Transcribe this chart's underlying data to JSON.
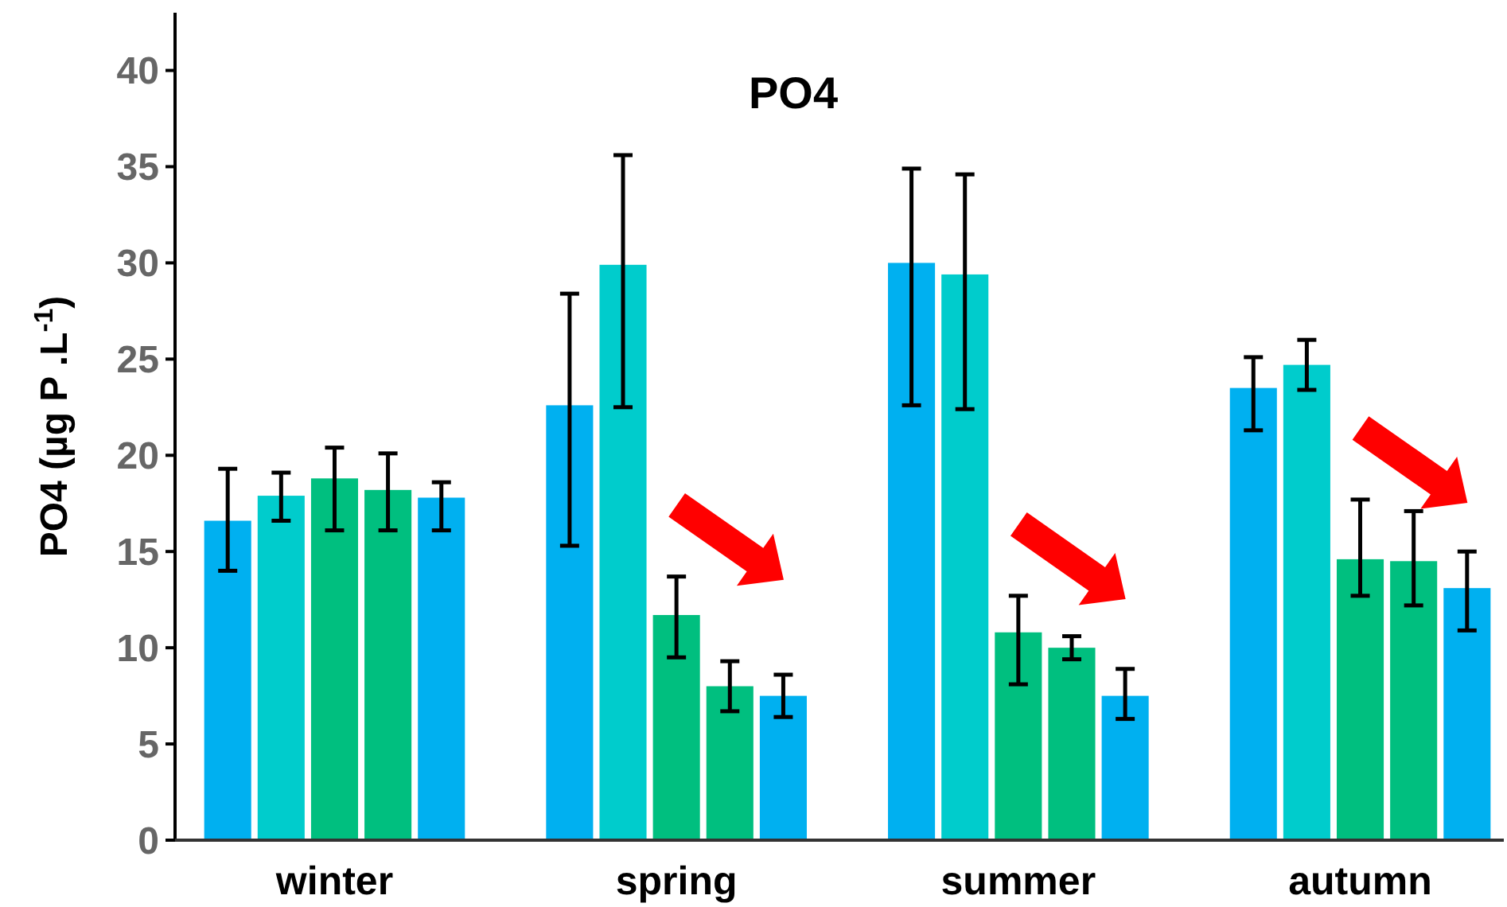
{
  "chart_data": {
    "type": "bar",
    "title": "PO4",
    "ylabel": "PO4 (µg P .L$^{-1}$)",
    "categories": [
      "winter",
      "spring",
      "summer",
      "autumn"
    ],
    "series": [
      {
        "color": "#00b0f0",
        "values": [
          16.6,
          22.6,
          30.0,
          23.5
        ],
        "errors": [
          [
            14.0,
            19.3
          ],
          [
            15.3,
            28.4
          ],
          [
            22.6,
            34.9
          ],
          [
            21.3,
            25.1
          ]
        ]
      },
      {
        "color": "#00cccc",
        "values": [
          17.9,
          29.9,
          29.4,
          24.7
        ],
        "errors": [
          [
            16.6,
            19.1
          ],
          [
            22.5,
            35.6
          ],
          [
            22.4,
            34.6
          ],
          [
            23.4,
            26.0
          ]
        ]
      },
      {
        "color": "#00bf7f",
        "values": [
          18.8,
          11.7,
          10.8,
          14.6
        ],
        "errors": [
          [
            16.1,
            20.4
          ],
          [
            9.5,
            13.7
          ],
          [
            8.1,
            12.7
          ],
          [
            12.7,
            17.7
          ]
        ]
      },
      {
        "color": "#00bf7f",
        "values": [
          18.2,
          8.0,
          10.0,
          14.5
        ],
        "errors": [
          [
            16.1,
            20.1
          ],
          [
            6.7,
            9.3
          ],
          [
            9.4,
            10.6
          ],
          [
            12.2,
            17.1
          ]
        ]
      },
      {
        "color": "#00b0f0",
        "values": [
          17.8,
          7.5,
          7.5,
          13.1
        ],
        "errors": [
          [
            16.1,
            18.6
          ],
          [
            6.4,
            8.6
          ],
          [
            6.3,
            8.9
          ],
          [
            10.9,
            15.0
          ]
        ]
      }
    ],
    "ylim": [
      0,
      43
    ],
    "yticks": [
      0,
      5,
      10,
      15,
      20,
      25,
      30,
      35,
      40
    ],
    "grid": false
  }
}
